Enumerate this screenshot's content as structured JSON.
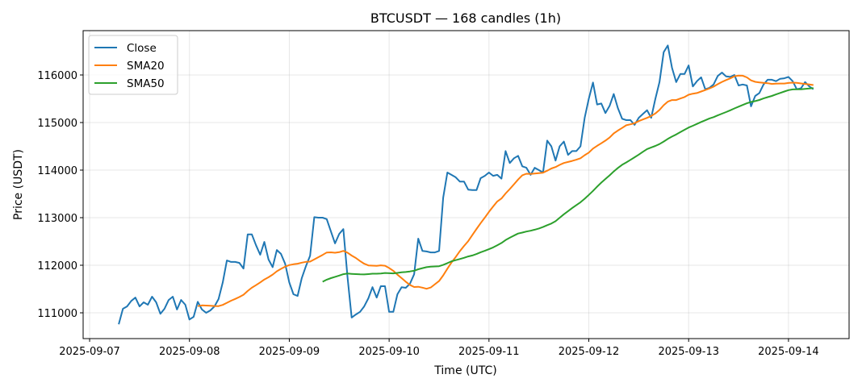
{
  "chart_data": {
    "type": "line",
    "title": "BTCUSDT — 168 candles (1h)",
    "xlabel": "Time (UTC)",
    "ylabel": "Price (USDT)",
    "start_time": "2025-09-07T07:00:00Z",
    "interval_hours": 1,
    "xlim_days_from_2025_09_07": [
      -0.065,
      7.607
    ],
    "ylim": [
      110458,
      116932
    ],
    "grid": true,
    "legend_position": "top-left",
    "x_ticks": [
      "2025-09-07",
      "2025-09-08",
      "2025-09-09",
      "2025-09-10",
      "2025-09-11",
      "2025-09-12",
      "2025-09-13",
      "2025-09-14"
    ],
    "y_ticks": [
      111000,
      112000,
      113000,
      114000,
      115000,
      116000
    ],
    "y_tick_labels": [
      "111000",
      "112000",
      "113000",
      "114000",
      "115000",
      "116000"
    ],
    "close": [
      110760,
      111085,
      111135,
      111250,
      111320,
      111135,
      111220,
      111170,
      111340,
      111220,
      110980,
      111085,
      111270,
      111340,
      111070,
      111270,
      111170,
      110860,
      110915,
      111230,
      111070,
      111000,
      111050,
      111135,
      111290,
      111640,
      112100,
      112070,
      112070,
      112050,
      111930,
      112650,
      112650,
      112420,
      112220,
      112490,
      112120,
      111960,
      112320,
      112240,
      112030,
      111640,
      111390,
      111355,
      111730,
      111980,
      112200,
      113010,
      113000,
      113000,
      112970,
      112710,
      112460,
      112660,
      112760,
      111745,
      110900,
      110965,
      111020,
      111135,
      111305,
      111540,
      111320,
      111560,
      111560,
      111020,
      111020,
      111390,
      111540,
      111525,
      111610,
      111810,
      112560,
      112300,
      112290,
      112270,
      112270,
      112300,
      113420,
      113950,
      113900,
      113850,
      113760,
      113760,
      113590,
      113580,
      113580,
      113830,
      113880,
      113950,
      113880,
      113900,
      113820,
      114400,
      114150,
      114250,
      114300,
      114080,
      114050,
      113900,
      114050,
      114000,
      113950,
      114620,
      114500,
      114200,
      114500,
      114600,
      114320,
      114400,
      114400,
      114500,
      115100,
      115500,
      115840,
      115380,
      115400,
      115200,
      115350,
      115600,
      115300,
      115080,
      115050,
      115050,
      114950,
      115100,
      115180,
      115260,
      115100,
      115500,
      115850,
      116480,
      116620,
      116150,
      115850,
      116020,
      116020,
      116200,
      115760,
      115870,
      115950,
      115700,
      115730,
      115800,
      115980,
      116050,
      115970,
      115960,
      116000,
      115780,
      115800,
      115780,
      115340,
      115560,
      115620,
      115800,
      115900,
      115900,
      115870,
      115920,
      115930,
      115960,
      115870,
      115700,
      115720,
      115850,
      115760,
      115700
    ],
    "series": [
      {
        "name": "Close",
        "color": "#1f77b4",
        "source": "close"
      },
      {
        "name": "SMA20",
        "color": "#ff7f0e",
        "sma_window": 20
      },
      {
        "name": "SMA50",
        "color": "#2ca02c",
        "sma_window": 50
      }
    ]
  }
}
